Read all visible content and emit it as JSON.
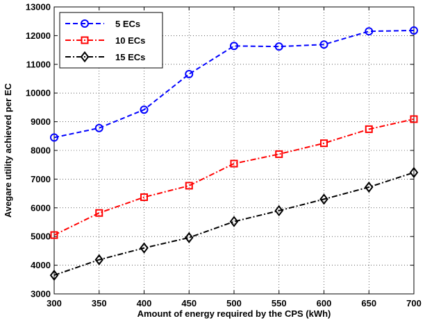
{
  "chart_data": {
    "type": "line",
    "title": "",
    "xlabel": "Amount of energy required by the CPS (kWh)",
    "ylabel": "Avegare utility achieved per EC",
    "xlim": [
      300,
      700
    ],
    "ylim": [
      3000,
      13000
    ],
    "xticks": [
      300,
      350,
      400,
      450,
      500,
      550,
      600,
      650,
      700
    ],
    "yticks": [
      3000,
      4000,
      5000,
      6000,
      7000,
      8000,
      9000,
      10000,
      11000,
      12000,
      13000
    ],
    "grid": true,
    "legend_position": "top-left",
    "x": [
      300,
      350,
      400,
      450,
      500,
      550,
      600,
      650,
      700
    ],
    "series": [
      {
        "name": "5 ECs",
        "color": "#0000ff",
        "line_style": "dashed",
        "marker": "circle",
        "values": [
          8450,
          8780,
          9420,
          10660,
          11640,
          11620,
          11690,
          12150,
          12180
        ]
      },
      {
        "name": "10 ECs",
        "color": "#ff0000",
        "line_style": "dash-dot",
        "marker": "square",
        "values": [
          5050,
          5820,
          6370,
          6770,
          7540,
          7870,
          8250,
          8740,
          9090
        ]
      },
      {
        "name": "15 ECs",
        "color": "#000000",
        "line_style": "dash-dot",
        "marker": "diamond",
        "values": [
          3650,
          4190,
          4600,
          4960,
          5520,
          5900,
          6300,
          6720,
          7230
        ]
      }
    ]
  }
}
